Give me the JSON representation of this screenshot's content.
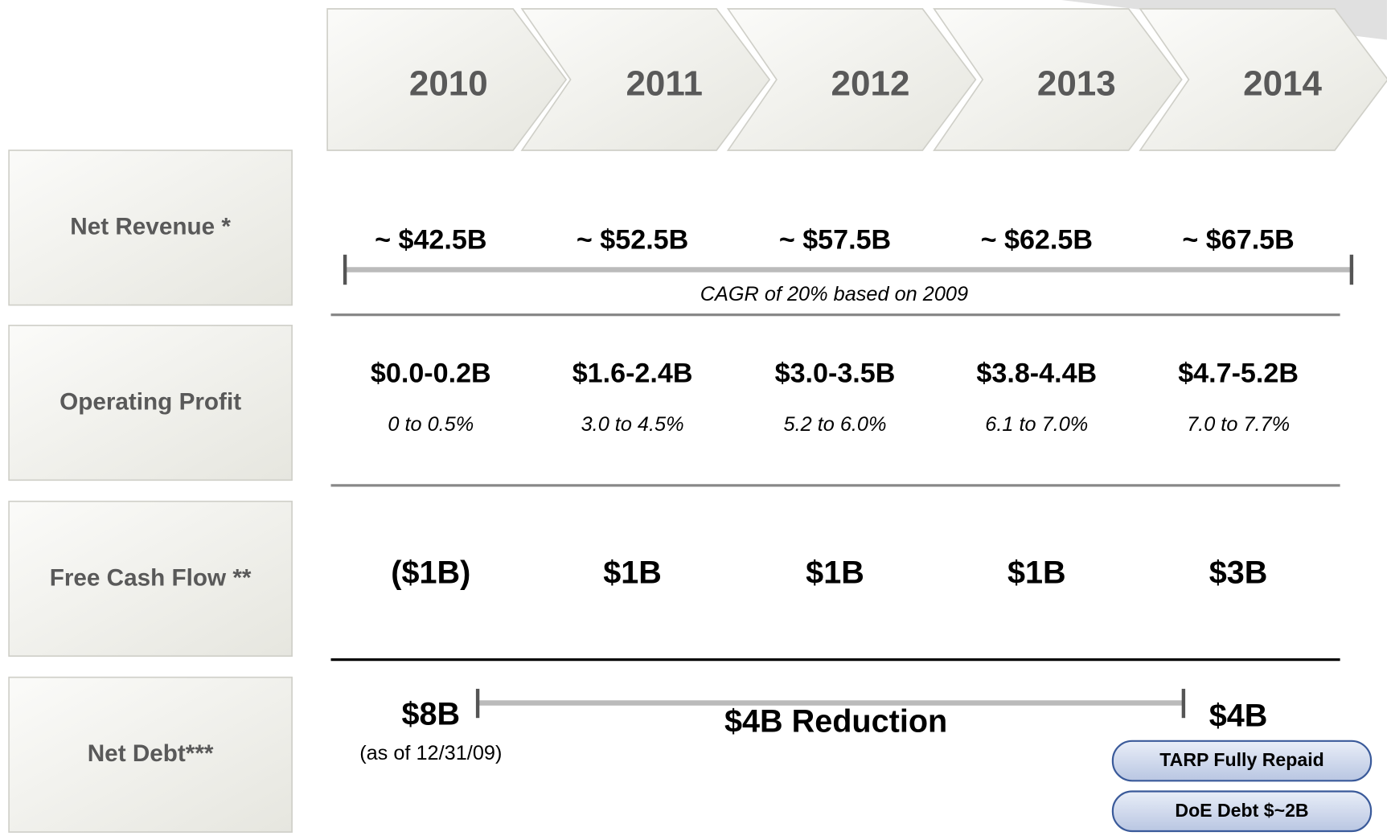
{
  "header": {
    "years": [
      "2010",
      "2011",
      "2012",
      "2013",
      "2014"
    ]
  },
  "rows": [
    {
      "label": "Net Revenue *",
      "values": [
        "~ $42.5B",
        "~ $52.5B",
        "~ $57.5B",
        "~ $62.5B",
        "~ $67.5B"
      ],
      "note": "CAGR of 20% based on 2009"
    },
    {
      "label": "Operating Profit",
      "values": [
        "$0.0-0.2B",
        "$1.6-2.4B",
        "$3.0-3.5B",
        "$3.8-4.4B",
        "$4.7-5.2B"
      ],
      "margins": [
        "0 to 0.5%",
        "3.0 to 4.5%",
        "5.2 to 6.0%",
        "6.1 to 7.0%",
        "7.0 to 7.7%"
      ]
    },
    {
      "label": "Free Cash Flow **",
      "values": [
        "($1B)",
        "$1B",
        "$1B",
        "$1B",
        "$3B"
      ]
    },
    {
      "label": "Net Debt***",
      "start": "$8B",
      "start_note": "(as of 12/31/09)",
      "change": "$4B Reduction",
      "end": "$4B",
      "badges": [
        "TARP Fully Repaid",
        "DoE Debt $~2B"
      ]
    }
  ]
}
